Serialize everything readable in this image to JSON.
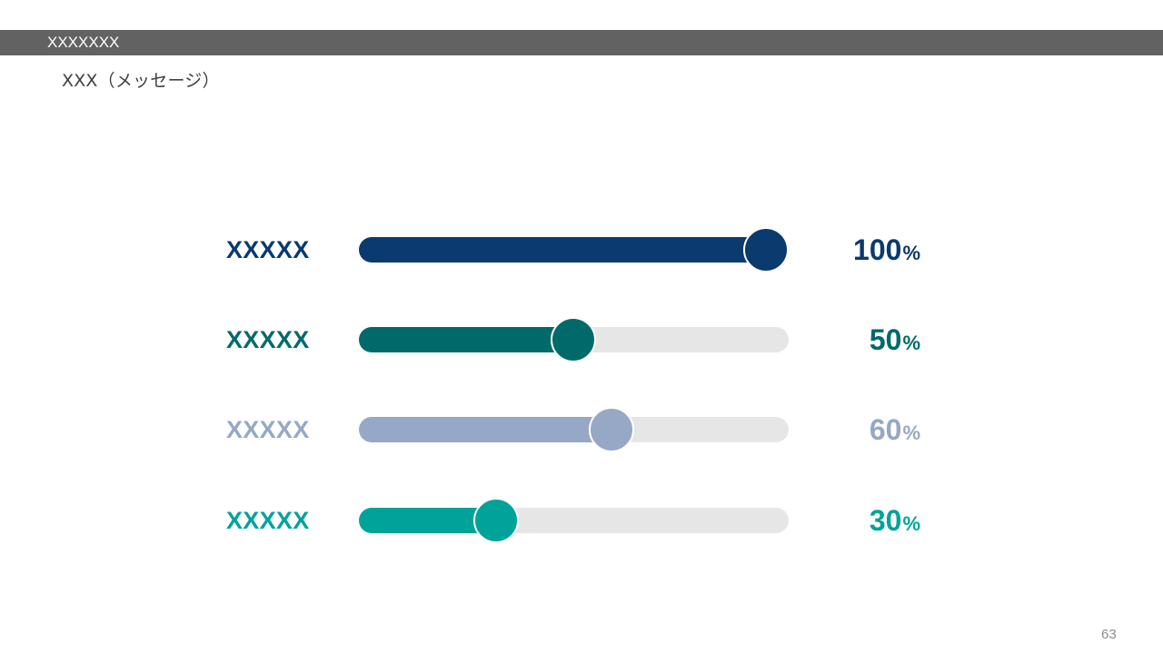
{
  "header": {
    "title": "XXXXXXX"
  },
  "message": "XXX（メッセージ）",
  "rows": [
    {
      "label": "XXXXX",
      "value": 100,
      "value_text": "100",
      "unit": "%",
      "color": "#0a3a6e"
    },
    {
      "label": "XXXXX",
      "value": 50,
      "value_text": "50",
      "unit": "%",
      "color": "#006a6a"
    },
    {
      "label": "XXXXX",
      "value": 60,
      "value_text": "60",
      "unit": "%",
      "color": "#97a8c6"
    },
    {
      "label": "XXXXX",
      "value": 30,
      "value_text": "30",
      "unit": "%",
      "color": "#00a39a"
    }
  ],
  "colors": {
    "header_bar": "#626262",
    "track": "#e6e6e6"
  },
  "page_number": "63"
}
